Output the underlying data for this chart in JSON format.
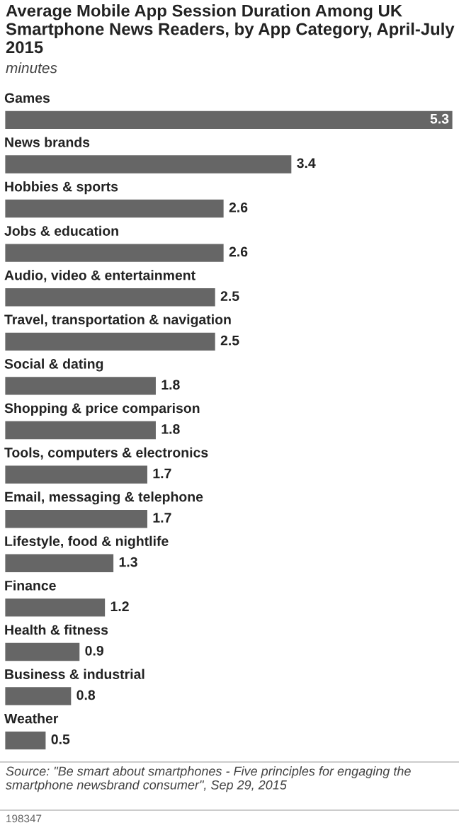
{
  "chart_data": {
    "type": "bar",
    "orientation": "horizontal",
    "title": "Average Mobile App Session Duration Among UK Smartphone News Readers, by App Category, April-July 2015",
    "subtitle": "minutes",
    "categories": [
      "Games",
      "News brands",
      "Hobbies & sports",
      "Jobs & education",
      "Audio, video & entertainment",
      "Travel, transportation & navigation",
      "Social & dating",
      "Shopping & price comparison",
      "Tools, computers & electronics",
      "Email, messaging & telephone",
      "Lifestyle, food & nightlife",
      "Finance",
      "Health & fitness",
      "Business & industrial",
      "Weather"
    ],
    "values": [
      5.3,
      3.4,
      2.6,
      2.6,
      2.5,
      2.5,
      1.8,
      1.8,
      1.7,
      1.7,
      1.3,
      1.2,
      0.9,
      0.8,
      0.5
    ],
    "color": "#666666",
    "data_labels": true,
    "annotations": [
      "Source: \"Be smart about smartphones - Five principles for engaging the smartphone newsbrand consumer\", Sep 29, 2015",
      "198347"
    ]
  }
}
